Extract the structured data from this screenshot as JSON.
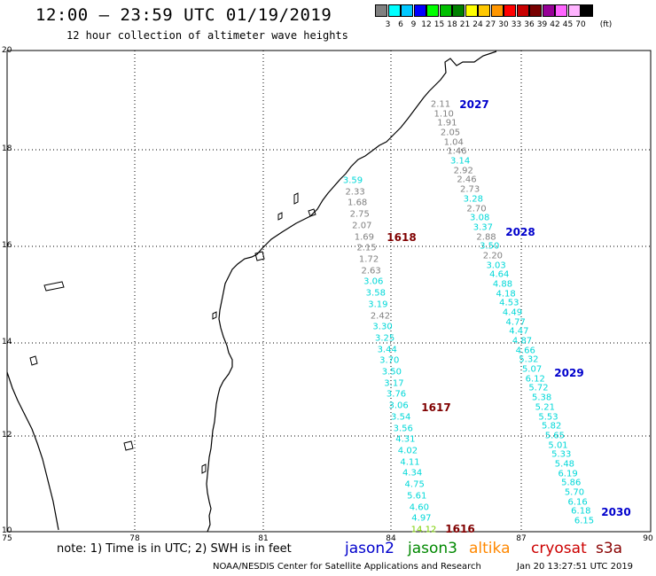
{
  "header": {
    "title": "12:00 – 23:59 UTC 01/19/2019",
    "subtitle": "12 hour collection of altimeter wave heights"
  },
  "legend": {
    "unit": "(ft)",
    "ticks": [
      "3",
      "6",
      "9",
      "12",
      "15",
      "18",
      "21",
      "24",
      "27",
      "30",
      "33",
      "36",
      "39",
      "42",
      "45",
      "70"
    ],
    "colors": [
      "#808080",
      "#00ffff",
      "#00c8ff",
      "#0000ff",
      "#00ff00",
      "#00c000",
      "#008000",
      "#ffff00",
      "#ffc800",
      "#ff9600",
      "#ff0000",
      "#c80000",
      "#780000",
      "#960096",
      "#ff64ff",
      "#ffb4ff",
      "#000000"
    ]
  },
  "axes": {
    "lat_labels": [
      "20",
      "18",
      "16",
      "14",
      "12",
      "10"
    ],
    "lon_labels": [
      "75",
      "78",
      "81",
      "84",
      "87",
      "90"
    ]
  },
  "tracks": [
    {
      "label": "2027",
      "color": "#0000cc"
    },
    {
      "label": "2028",
      "color": "#0000cc"
    },
    {
      "label": "2029",
      "color": "#0000cc"
    },
    {
      "label": "2030",
      "color": "#0000cc"
    },
    {
      "label": "1618",
      "color": "#800000"
    },
    {
      "label": "1617",
      "color": "#800000"
    },
    {
      "label": "1616",
      "color": "#800000"
    }
  ],
  "values": [
    {
      "t": "2.11",
      "c": "#808080"
    },
    {
      "t": "1.10",
      "c": "#808080"
    },
    {
      "t": "1.91",
      "c": "#808080"
    },
    {
      "t": "2.05",
      "c": "#808080"
    },
    {
      "t": "1.04",
      "c": "#808080"
    },
    {
      "t": "1.46",
      "c": "#808080"
    },
    {
      "t": "3.14",
      "c": "#00d8d8"
    },
    {
      "t": "2.92",
      "c": "#808080"
    },
    {
      "t": "2.46",
      "c": "#808080"
    },
    {
      "t": "2.73",
      "c": "#808080"
    },
    {
      "t": "3.28",
      "c": "#00d8d8"
    },
    {
      "t": "2.70",
      "c": "#808080"
    },
    {
      "t": "3.08",
      "c": "#00d8d8"
    },
    {
      "t": "3.37",
      "c": "#00d8d8"
    },
    {
      "t": "2.88",
      "c": "#808080"
    },
    {
      "t": "3.50",
      "c": "#00d8d8"
    },
    {
      "t": "2.20",
      "c": "#808080"
    },
    {
      "t": "3.03",
      "c": "#00d8d8"
    },
    {
      "t": "4.64",
      "c": "#00d8d8"
    },
    {
      "t": "4.88",
      "c": "#00d8d8"
    },
    {
      "t": "4.18",
      "c": "#00d8d8"
    },
    {
      "t": "4.53",
      "c": "#00d8d8"
    },
    {
      "t": "4.49",
      "c": "#00d8d8"
    },
    {
      "t": "4.77",
      "c": "#00d8d8"
    },
    {
      "t": "4.47",
      "c": "#00d8d8"
    },
    {
      "t": "4.87",
      "c": "#00d8d8"
    },
    {
      "t": "4.66",
      "c": "#00d8d8"
    },
    {
      "t": "5.32",
      "c": "#00d8d8"
    },
    {
      "t": "5.07",
      "c": "#00d8d8"
    },
    {
      "t": "6.12",
      "c": "#00d8d8"
    },
    {
      "t": "5.72",
      "c": "#00d8d8"
    },
    {
      "t": "5.38",
      "c": "#00d8d8"
    },
    {
      "t": "5.21",
      "c": "#00d8d8"
    },
    {
      "t": "5.53",
      "c": "#00d8d8"
    },
    {
      "t": "5.82",
      "c": "#00d8d8"
    },
    {
      "t": "5.65",
      "c": "#00d8d8"
    },
    {
      "t": "5.01",
      "c": "#00d8d8"
    },
    {
      "t": "5.33",
      "c": "#00d8d8"
    },
    {
      "t": "5.48",
      "c": "#00d8d8"
    },
    {
      "t": "6.19",
      "c": "#00d8d8"
    },
    {
      "t": "5.86",
      "c": "#00d8d8"
    },
    {
      "t": "5.70",
      "c": "#00d8d8"
    },
    {
      "t": "6.16",
      "c": "#00d8d8"
    },
    {
      "t": "6.18",
      "c": "#00d8d8"
    },
    {
      "t": "6.15",
      "c": "#00d8d8"
    },
    {
      "t": "3.59",
      "c": "#00d8d8"
    },
    {
      "t": "2.33",
      "c": "#808080"
    },
    {
      "t": "1.68",
      "c": "#808080"
    },
    {
      "t": "2.75",
      "c": "#808080"
    },
    {
      "t": "2.07",
      "c": "#808080"
    },
    {
      "t": "1.69",
      "c": "#808080"
    },
    {
      "t": "2.15",
      "c": "#808080"
    },
    {
      "t": "1.72",
      "c": "#808080"
    },
    {
      "t": "2.63",
      "c": "#808080"
    },
    {
      "t": "3.06",
      "c": "#00d8d8"
    },
    {
      "t": "3.58",
      "c": "#00d8d8"
    },
    {
      "t": "3.19",
      "c": "#00d8d8"
    },
    {
      "t": "2.42",
      "c": "#808080"
    },
    {
      "t": "3.30",
      "c": "#00d8d8"
    },
    {
      "t": "3.25",
      "c": "#00d8d8"
    },
    {
      "t": "3.44",
      "c": "#00d8d8"
    },
    {
      "t": "3.70",
      "c": "#00d8d8"
    },
    {
      "t": "3.50",
      "c": "#00d8d8"
    },
    {
      "t": "3.17",
      "c": "#00d8d8"
    },
    {
      "t": "3.76",
      "c": "#00d8d8"
    },
    {
      "t": "3.06",
      "c": "#00d8d8"
    },
    {
      "t": "3.54",
      "c": "#00d8d8"
    },
    {
      "t": "3.56",
      "c": "#00d8d8"
    },
    {
      "t": "4.31",
      "c": "#00d8d8"
    },
    {
      "t": "4.02",
      "c": "#00d8d8"
    },
    {
      "t": "4.11",
      "c": "#00d8d8"
    },
    {
      "t": "4.34",
      "c": "#00d8d8"
    },
    {
      "t": "4.75",
      "c": "#00d8d8"
    },
    {
      "t": "5.61",
      "c": "#00d8d8"
    },
    {
      "t": "4.60",
      "c": "#00d8d8"
    },
    {
      "t": "4.97",
      "c": "#00d8d8"
    },
    {
      "t": "14.12",
      "c": "#7cd000"
    }
  ],
  "footer": {
    "note": "note: 1) Time is in UTC; 2) SWH is in feet",
    "satellites": [
      {
        "name": "jason2",
        "color": "#0000cc"
      },
      {
        "name": "jason3",
        "color": "#008800"
      },
      {
        "name": "altika",
        "color": "#ff8800"
      },
      {
        "name": "cryosat",
        "color": "#cc0000"
      },
      {
        "name": "s3a",
        "color": "#880000"
      }
    ],
    "credit": "NOAA/NESDIS Center for Satellite Applications and Research",
    "timestamp": "Jan 20 13:27:51 UTC 2019"
  }
}
